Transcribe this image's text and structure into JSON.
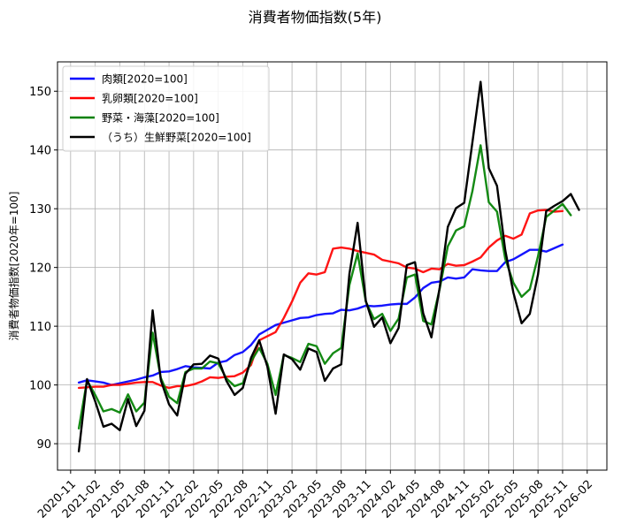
{
  "chart_data": {
    "type": "line",
    "title": "消費者物価指数(5年)",
    "xlabel": "",
    "ylabel": "消費者物価指数[2020年=100]",
    "ylim": [
      85.5,
      155
    ],
    "yticks": [
      90,
      100,
      110,
      120,
      130,
      140,
      150
    ],
    "x_start": "2020-12",
    "x_range_months": [
      -2.6,
      64.4
    ],
    "x_tick_labels": [
      "2020-11",
      "2021-02",
      "2021-05",
      "2021-08",
      "2021-11",
      "2022-02",
      "2022-05",
      "2022-08",
      "2022-11",
      "2023-02",
      "2023-05",
      "2023-08",
      "2023-11",
      "2024-02",
      "2024-05",
      "2024-08",
      "2024-11",
      "2025-02",
      "2025-05",
      "2025-08",
      "2025-11",
      "2026-02"
    ],
    "x_tick_months": [
      -1,
      2,
      5,
      8,
      11,
      14,
      17,
      20,
      23,
      26,
      29,
      32,
      35,
      38,
      41,
      44,
      47,
      50,
      53,
      56,
      59,
      62
    ],
    "grid": true,
    "legend_position": "top-left",
    "series": [
      {
        "name": "肉類[2020=100]",
        "color": "#0000ff",
        "values": [
          100.4,
          100.8,
          100.6,
          100.4,
          100.0,
          100.3,
          100.6,
          100.9,
          101.3,
          101.6,
          102.2,
          102.3,
          102.7,
          103.2,
          103.0,
          102.9,
          102.8,
          103.8,
          104.1,
          105.1,
          105.6,
          106.8,
          108.6,
          109.4,
          110.2,
          110.6,
          111.0,
          111.4,
          111.5,
          111.9,
          112.1,
          112.2,
          112.8,
          112.7,
          113.0,
          113.5,
          113.4,
          113.5,
          113.7,
          113.8,
          113.8,
          114.9,
          116.5,
          117.4,
          117.6,
          118.3,
          118.1,
          118.3,
          119.7,
          119.5,
          119.4,
          119.4,
          120.9,
          121.4,
          122.2,
          123.0,
          123.0,
          122.7,
          123.3,
          123.9
        ]
      },
      {
        "name": "乳卵類[2020=100]",
        "color": "#ff0000",
        "values": [
          99.5,
          99.6,
          99.7,
          99.7,
          100.0,
          100.0,
          100.2,
          100.4,
          100.5,
          100.5,
          99.9,
          99.5,
          99.8,
          99.8,
          100.1,
          100.6,
          101.3,
          101.2,
          101.4,
          101.5,
          102.1,
          103.4,
          107.6,
          108.3,
          109.0,
          111.4,
          114.2,
          117.4,
          119.0,
          118.8,
          119.2,
          123.2,
          123.4,
          123.2,
          122.8,
          122.5,
          122.2,
          121.3,
          121.0,
          120.7,
          120.0,
          119.8,
          119.2,
          119.8,
          119.7,
          120.6,
          120.3,
          120.4,
          121.0,
          121.7,
          123.4,
          124.6,
          125.4,
          124.9,
          125.6,
          129.2,
          129.7,
          129.8,
          129.5,
          129.6
        ]
      },
      {
        "name": "野菜・海藻[2020=100]",
        "color": "#008000",
        "values": [
          92.6,
          100.8,
          98.3,
          95.5,
          95.9,
          95.3,
          98.4,
          95.5,
          97.0,
          108.9,
          101.2,
          98.0,
          96.9,
          102.2,
          102.8,
          102.8,
          104.0,
          103.7,
          101.1,
          99.8,
          100.3,
          104.0,
          106.3,
          103.6,
          98.3,
          105.1,
          104.6,
          103.9,
          107.0,
          106.6,
          103.6,
          105.4,
          106.3,
          117.0,
          122.4,
          114.2,
          111.2,
          112.1,
          109.2,
          111.3,
          118.3,
          118.8,
          110.9,
          110.3,
          116.3,
          123.6,
          126.3,
          127.0,
          133.0,
          140.8,
          131.1,
          129.5,
          121.5,
          117.4,
          115.0,
          116.3,
          121.9,
          128.6,
          129.7,
          130.8,
          128.9
        ]
      },
      {
        "name": "（うち）生鮮野菜[2020=100]",
        "color": "#000000",
        "values": [
          88.7,
          101.0,
          97.2,
          92.9,
          93.4,
          92.3,
          97.6,
          93.0,
          95.6,
          112.7,
          100.8,
          96.7,
          94.8,
          101.9,
          103.5,
          103.6,
          105.0,
          104.5,
          100.7,
          98.3,
          99.5,
          104.6,
          107.6,
          103.1,
          95.1,
          105.2,
          104.4,
          102.6,
          106.2,
          105.6,
          100.7,
          102.8,
          103.5,
          118.9,
          127.6,
          114.3,
          109.9,
          111.5,
          107.1,
          109.7,
          120.4,
          120.9,
          112.2,
          108.1,
          116.5,
          126.9,
          130.1,
          131.0,
          141.3,
          151.6,
          136.9,
          133.9,
          123.0,
          115.7,
          110.5,
          112.1,
          118.8,
          129.6,
          130.5,
          131.3,
          132.5,
          129.8
        ]
      }
    ]
  }
}
